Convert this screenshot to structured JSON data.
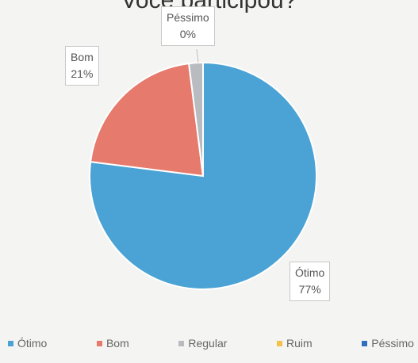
{
  "chart_data": {
    "type": "pie",
    "title": "Você participou?",
    "categories": [
      "Ótimo",
      "Bom",
      "Regular",
      "Ruim",
      "Péssimo"
    ],
    "values": [
      77,
      21,
      2,
      0,
      0
    ],
    "colors": [
      "#4aa3d4",
      "#e67a6c",
      "#b8bcc0",
      "#f2c24c",
      "#2f6fbf"
    ],
    "data_labels": [
      {
        "category": "Ótimo",
        "name": "Ótimo",
        "percent": "77%"
      },
      {
        "category": "Bom",
        "name": "Bom",
        "percent": "21%"
      },
      {
        "category": "Péssimo",
        "name": "Péssimo",
        "percent": "0%"
      }
    ],
    "legend_position": "bottom"
  }
}
